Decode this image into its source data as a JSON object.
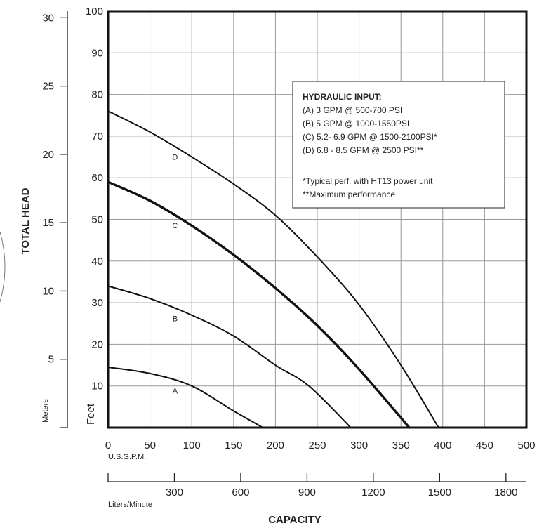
{
  "chart_data": {
    "type": "line",
    "x_axis": {
      "label": "CAPACITY",
      "unit": "U.S.G.P.M.",
      "ticks": [
        0,
        50,
        100,
        150,
        200,
        250,
        300,
        350,
        400,
        450,
        500
      ],
      "range": [
        0,
        500
      ]
    },
    "x_axis_secondary": {
      "unit": "Liters/Minute",
      "ticks": [
        300,
        600,
        900,
        1200,
        1500,
        1800
      ]
    },
    "y_axis": {
      "label": "TOTAL HEAD",
      "unit": "Feet",
      "ticks": [
        10,
        20,
        30,
        40,
        50,
        60,
        70,
        80,
        90,
        100
      ],
      "range": [
        0,
        100
      ]
    },
    "y_axis_secondary": {
      "unit": "Meters",
      "ticks": [
        5,
        10,
        15,
        20,
        25,
        30
      ]
    },
    "grid": true,
    "series": [
      {
        "name": "A",
        "x": [
          0,
          50,
          100,
          150,
          185
        ],
        "y": [
          14.5,
          13,
          10,
          4,
          0
        ]
      },
      {
        "name": "B",
        "x": [
          0,
          50,
          100,
          150,
          200,
          240,
          290
        ],
        "y": [
          34,
          31,
          27,
          22,
          15,
          10,
          0
        ]
      },
      {
        "name": "C",
        "x": [
          0,
          50,
          100,
          150,
          200,
          250,
          300,
          360
        ],
        "y": [
          59,
          54.5,
          48.5,
          41.5,
          33.5,
          24.5,
          14,
          0
        ]
      },
      {
        "name": "D",
        "x": [
          0,
          50,
          100,
          150,
          200,
          250,
          300,
          350,
          395
        ],
        "y": [
          76,
          71,
          65,
          58.5,
          51,
          41,
          29.5,
          15,
          0
        ]
      }
    ],
    "legend": {
      "placement": "top-right",
      "title": "HYDRAULIC INPUT:",
      "lines": [
        "(A) 3 GPM @ 500-700 PSI",
        "(B) 5 GPM @ 1000-1550PSI",
        "(C) 5.2- 6.9 GPM @ 1500-2100PSI*",
        "(D) 6.8 - 8.5 GPM @ 2500 PSI**",
        "",
        "*Typical perf. with HT13 power unit",
        "**Maximum performance"
      ]
    }
  }
}
